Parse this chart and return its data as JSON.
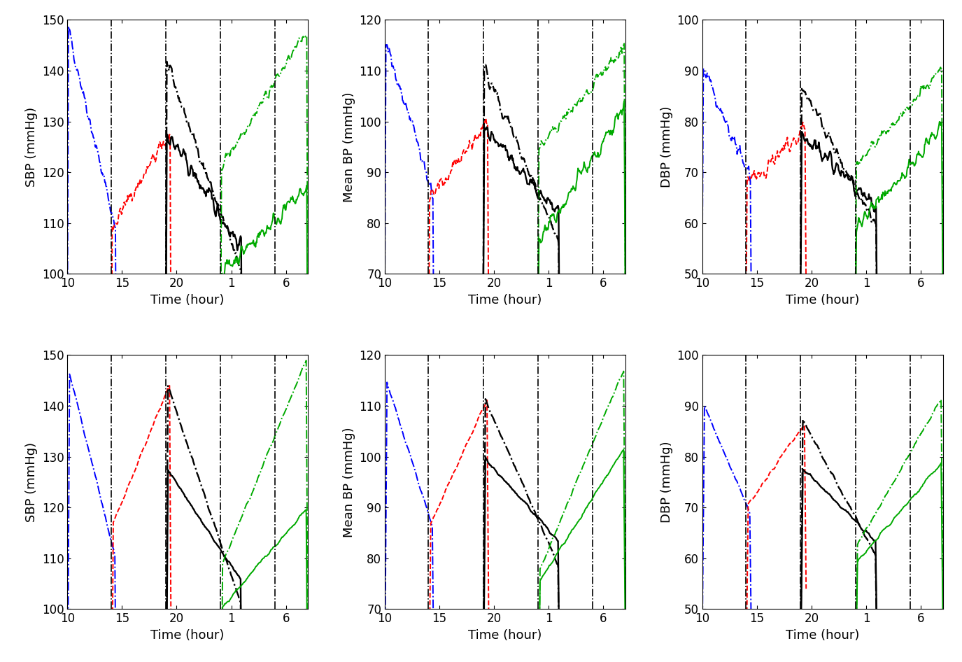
{
  "time_labels": [
    "10",
    "15",
    "20",
    "1",
    "6"
  ],
  "time_ticks": [
    10,
    15,
    20,
    25,
    30
  ],
  "vlines": [
    14,
    19,
    24,
    29
  ],
  "subplot_configs": [
    {
      "row": 0,
      "col": 0,
      "ylabel": "SBP (mmHg)",
      "ylim": [
        100,
        150
      ],
      "yticks": [
        100,
        110,
        120,
        130,
        140,
        150
      ]
    },
    {
      "row": 0,
      "col": 1,
      "ylabel": "Mean BP (mmHg)",
      "ylim": [
        70,
        120
      ],
      "yticks": [
        70,
        80,
        90,
        100,
        110,
        120
      ]
    },
    {
      "row": 0,
      "col": 2,
      "ylabel": "DBP (mmHg)",
      "ylim": [
        50,
        100
      ],
      "yticks": [
        50,
        60,
        70,
        80,
        90,
        100
      ]
    },
    {
      "row": 1,
      "col": 0,
      "ylabel": "SBP (mmHg)",
      "ylim": [
        100,
        150
      ],
      "yticks": [
        100,
        110,
        120,
        130,
        140,
        150
      ]
    },
    {
      "row": 1,
      "col": 1,
      "ylabel": "Mean BP (mmHg)",
      "ylim": [
        70,
        120
      ],
      "yticks": [
        70,
        80,
        90,
        100,
        110,
        120
      ]
    },
    {
      "row": 1,
      "col": 2,
      "ylabel": "DBP (mmHg)",
      "ylim": [
        50,
        100
      ],
      "yticks": [
        50,
        60,
        70,
        80,
        90,
        100
      ]
    }
  ],
  "xlabel": "Time (hour)",
  "colors": {
    "blue": "#0000ff",
    "red": "#ff0000",
    "black": "#000000",
    "green": "#00aa00"
  }
}
